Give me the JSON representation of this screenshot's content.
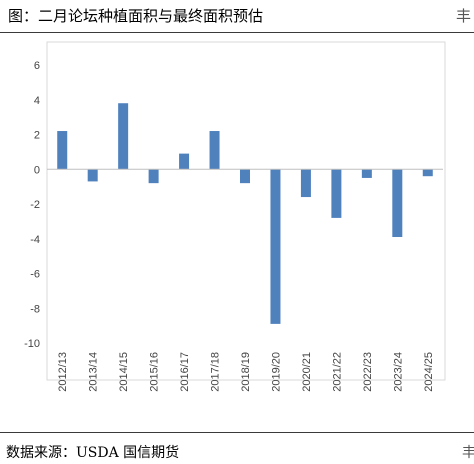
{
  "header": {
    "title": "图：二月论坛种植面积与最终面积预估",
    "title_right_fragment": "丰"
  },
  "footer": {
    "source": "数据来源：USDA  国信期货",
    "source_right_fragment": "丰"
  },
  "chart_data": {
    "type": "bar",
    "categories": [
      "2012/13",
      "2013/14",
      "2014/15",
      "2015/16",
      "2016/17",
      "2017/18",
      "2018/19",
      "2019/20",
      "2020/21",
      "2021/22",
      "2022/23",
      "2023/24",
      "2024/25"
    ],
    "values": [
      2.2,
      -0.7,
      3.8,
      -0.8,
      0.9,
      2.2,
      -0.8,
      -8.9,
      -1.6,
      -2.8,
      -0.5,
      -3.9,
      -0.4
    ],
    "ylim": [
      -10,
      6
    ],
    "yticks": [
      6,
      4,
      2,
      0,
      -2,
      -4,
      -6,
      -8,
      -10
    ],
    "bar_color": "#4f81bd",
    "grid": false,
    "legend": "none"
  }
}
